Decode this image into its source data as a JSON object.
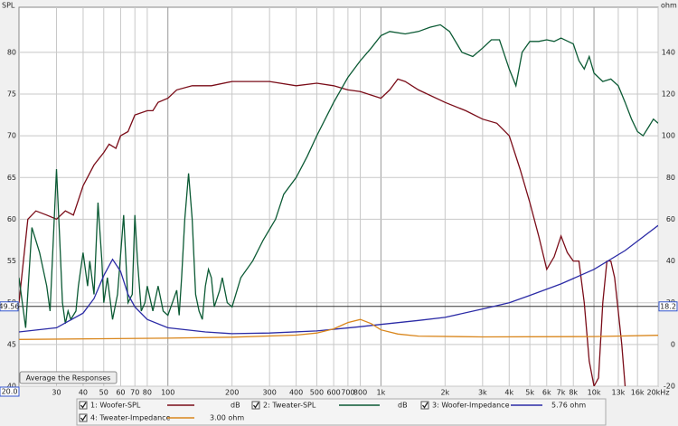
{
  "chart_data": {
    "type": "line",
    "y_label": "SPL",
    "y2_label": "ohm",
    "xlim": [
      20,
      20000
    ],
    "ylim": [
      40,
      85.4
    ],
    "y2lim": [
      -20,
      161.6
    ],
    "xscale": "log",
    "grid": true,
    "xticks": [
      30,
      40,
      50,
      60,
      70,
      80,
      100,
      200,
      300,
      400,
      500,
      600,
      700,
      800,
      {
        "value": 1000,
        "label": "1k"
      },
      {
        "value": 2000,
        "label": "2k"
      },
      {
        "value": 3000,
        "label": "3k"
      },
      {
        "value": 4000,
        "label": "4k"
      },
      {
        "value": 5000,
        "label": "5k"
      },
      {
        "value": 6000,
        "label": "6k"
      },
      {
        "value": 7000,
        "label": "7k"
      },
      {
        "value": 8000,
        "label": "8k"
      },
      {
        "value": 10000,
        "label": "10k"
      },
      {
        "value": 13000,
        "label": "13k"
      },
      {
        "value": 16000,
        "label": "16k"
      },
      {
        "value": 20000,
        "label": "20kHz"
      }
    ],
    "yticks": [
      40,
      45,
      50,
      55,
      60,
      65,
      70,
      75,
      80
    ],
    "y2ticks": [
      -20,
      0,
      20,
      40,
      60,
      80,
      100,
      120,
      140
    ],
    "cursor": {
      "y": 49.56,
      "y2": 18.2,
      "x": {
        "value": 20,
        "label": "20.0"
      }
    },
    "button": "Average the Responses",
    "series": [
      {
        "name": "1: Woofer-SPL",
        "color": "#7a0c18",
        "readout": "dB",
        "x": [
          20,
          22,
          24,
          27,
          30,
          33,
          36,
          40,
          45,
          50,
          53,
          57,
          60,
          65,
          70,
          80,
          85,
          90,
          100,
          110,
          130,
          160,
          200,
          250,
          300,
          400,
          500,
          600,
          700,
          800,
          1000,
          1100,
          1200,
          1300,
          1500,
          2000,
          2500,
          3000,
          3500,
          4000,
          4500,
          5000,
          5500,
          6000,
          6500,
          7000,
          7500,
          8000,
          8500,
          9000,
          9500,
          10000,
          10500,
          11000,
          11500,
          12000,
          12500,
          13000,
          13500,
          14000
        ],
        "values": [
          50,
          60,
          61,
          60.5,
          60,
          61,
          60.5,
          64,
          66.5,
          68,
          69,
          68.5,
          70,
          70.5,
          72.5,
          73,
          73,
          74,
          74.5,
          75.5,
          76,
          76,
          76.5,
          76.5,
          76.5,
          76,
          76.3,
          76,
          75.5,
          75.3,
          74.5,
          75.5,
          76.8,
          76.5,
          75.5,
          74,
          73,
          72,
          71.5,
          70,
          66,
          62,
          58,
          54,
          55.5,
          58,
          56,
          55,
          55,
          50,
          43,
          40,
          41,
          50,
          55,
          55,
          53,
          49,
          45,
          40
        ]
      },
      {
        "name": "2: Tweater-SPL",
        "color": "#0b5a34",
        "readout": "dB",
        "x": [
          20,
          21.5,
          23,
          25,
          27,
          28,
          30,
          31,
          32,
          33,
          34,
          35,
          37,
          38,
          40,
          42,
          43,
          45,
          47,
          49,
          50,
          52,
          55,
          58,
          62,
          65,
          68,
          70,
          72,
          75,
          78,
          80,
          85,
          90,
          95,
          100,
          105,
          110,
          113,
          116,
          120,
          125,
          130,
          135,
          140,
          145,
          150,
          155,
          160,
          165,
          175,
          180,
          190,
          200,
          220,
          250,
          280,
          320,
          350,
          400,
          450,
          500,
          600,
          700,
          800,
          900,
          1000,
          1100,
          1300,
          1500,
          1700,
          1900,
          2100,
          2400,
          2700,
          3000,
          3300,
          3600,
          4000,
          4300,
          4600,
          5000,
          5500,
          6000,
          6500,
          7000,
          8000,
          8500,
          9000,
          9500,
          10000,
          11000,
          12000,
          13000,
          14000,
          15000,
          16000,
          17000,
          18000,
          19000,
          20000
        ],
        "values": [
          53,
          47,
          59,
          56,
          52,
          49,
          66,
          58,
          50,
          47.5,
          49,
          48,
          49,
          52,
          56,
          52,
          55,
          51,
          62,
          55,
          50,
          53,
          48,
          51,
          60.5,
          50,
          51,
          60.5,
          55,
          49,
          50,
          52,
          49,
          52,
          49,
          48.5,
          50,
          51.5,
          48.5,
          53,
          60,
          65.5,
          60,
          51,
          49,
          48,
          52,
          54,
          53,
          49.5,
          51.5,
          53,
          50,
          49.5,
          53,
          55,
          57.5,
          60,
          63,
          65,
          67.5,
          70,
          74,
          77,
          79,
          80.5,
          82,
          82.5,
          82.2,
          82.5,
          83,
          83.3,
          82.5,
          80,
          79.5,
          80.5,
          81.5,
          81.5,
          78,
          76,
          80,
          81.3,
          81.3,
          81.5,
          81.3,
          81.7,
          81,
          79,
          78,
          79.5,
          77.5,
          76.5,
          76.8,
          76,
          74,
          72,
          70.5,
          70,
          71,
          72,
          71.5
        ]
      },
      {
        "name": "3: Woofer-Impedance",
        "color": "#2b2ba6",
        "readout": "5.76 ohm",
        "axis": "y2",
        "x": [
          20,
          30,
          40,
          45,
          50,
          55,
          60,
          65,
          70,
          80,
          100,
          150,
          200,
          300,
          500,
          800,
          1000,
          1500,
          2000,
          3000,
          4000,
          5000,
          7000,
          10000,
          14000,
          20000
        ],
        "values": [
          6,
          8,
          15,
          22,
          33,
          40.8,
          35,
          24,
          18,
          12,
          8,
          6,
          5.2,
          5.5,
          6.5,
          8.5,
          9.6,
          11.5,
          13,
          17,
          20,
          23.5,
          29,
          36,
          45,
          57
        ]
      },
      {
        "name": "4: Tweater-Impedance",
        "color": "#d9861c",
        "readout": "3.00 ohm",
        "axis": "y2",
        "x": [
          20,
          100,
          200,
          400,
          500,
          600,
          700,
          800,
          900,
          1000,
          1200,
          1500,
          3000,
          10000,
          20000
        ],
        "values": [
          2.4,
          3,
          3.5,
          4.5,
          5.5,
          7.5,
          10.5,
          12,
          10,
          7,
          5,
          4,
          3.6,
          3.8,
          4.4
        ]
      }
    ]
  }
}
